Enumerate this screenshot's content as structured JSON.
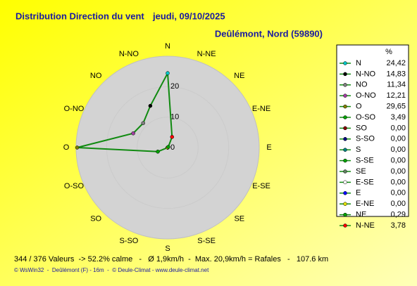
{
  "chart_data": {
    "type": "polar",
    "title": "Distribution Direction du vent",
    "date": "jeudi, 09/10/2025",
    "subtitle": "Deûlémont, Nord (59890)",
    "legend_title": "%",
    "categories": [
      "N",
      "N-NO",
      "NO",
      "O-NO",
      "O",
      "O-SO",
      "SO",
      "S-SO",
      "S",
      "S-SE",
      "SE",
      "E-SE",
      "E",
      "E-NE",
      "NE",
      "N-NE"
    ],
    "colors": [
      "#00c8c8",
      "#000000",
      "#808080",
      "#a040a0",
      "#808000",
      "#00a000",
      "#800000",
      "#000080",
      "#008080",
      "#00a000",
      "#608060",
      "#ffffff",
      "#0000ff",
      "#e0e000",
      "#00a000",
      "#ff0000"
    ],
    "series": [
      {
        "name": "%",
        "color": "#108a10",
        "values": [
          24.42,
          14.83,
          11.34,
          12.21,
          29.65,
          3.49,
          0,
          0,
          0,
          0,
          0,
          0,
          0,
          0,
          0.29,
          3.78
        ],
        "value_labels": [
          "24,42",
          "14,83",
          "11,34",
          "12,21",
          "29,65",
          "3,49",
          "0,00",
          "0,00",
          "0,00",
          "0,00",
          "0,00",
          "0,00",
          "0,00",
          "0,00",
          "0,29",
          "3,78"
        ]
      }
    ],
    "rlim": [
      0,
      30
    ],
    "rticks": [
      0,
      10,
      20
    ],
    "footer": "344 / 376 Valeurs  -> 52.2% calme   -   Ø 1,9km/h  -  Max. 20,9km/h = Rafales   -   107.6 km",
    "credits": "© WsWin32  -  Deûlémont (F) - 16m  -  © Deule-Climat - www.deule-climat.net"
  }
}
